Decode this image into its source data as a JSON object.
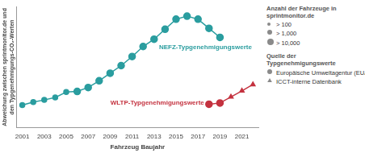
{
  "chart_data": {
    "type": "line",
    "x_label": "Fahrzeug Baujahr",
    "y_label": [
      "Abweichung zwischen sprintmonitor.de und",
      "den Typgenehmigungs-CO₂-Werten"
    ],
    "xlim": [
      2000.5,
      2022.5
    ],
    "xticks": [
      2001,
      2003,
      2005,
      2007,
      2009,
      2011,
      2013,
      2015,
      2017,
      2019,
      2021
    ],
    "ylim": [
      0,
      40
    ],
    "tick_labels": "x",
    "grid": false,
    "series": [
      {
        "name": "NEFZ-Typgenehmigungswerte",
        "color": "#2a9d9f",
        "x": [
          2001,
          2002,
          2003,
          2004,
          2005,
          2006,
          2007,
          2008,
          2009,
          2010,
          2011,
          2012,
          2013,
          2014,
          2015,
          2016,
          2017,
          2018,
          2019
        ],
        "values": [
          7.5,
          8.5,
          9.2,
          10,
          11.8,
          12,
          13.3,
          15.5,
          18,
          20.5,
          23.5,
          26.8,
          29.2,
          32.5,
          35.8,
          36.8,
          35.8,
          32.8,
          29.8
        ],
        "vehicles": [
          1000,
          1000,
          1000,
          1000,
          1000,
          10000,
          10000,
          10000,
          10000,
          10000,
          10000,
          10000,
          10000,
          10000,
          10000,
          10000,
          10000,
          10000,
          10000
        ],
        "marker": [
          "circle",
          "circle",
          "circle",
          "circle",
          "circle",
          "circle",
          "circle",
          "circle",
          "circle",
          "circle",
          "circle",
          "circle",
          "circle",
          "circle",
          "circle",
          "circle",
          "circle",
          "circle",
          "circle"
        ]
      },
      {
        "name": "WLTP-Typgenehmigungswerte",
        "color": "#c4323f",
        "x": [
          2018,
          2019,
          2020,
          2021,
          2022
        ],
        "values": [
          7.8,
          8.2,
          10.2,
          12.2,
          14.3
        ],
        "vehicles": [
          10000,
          10000,
          1000,
          1000,
          1000
        ],
        "marker": [
          "circle",
          "circle",
          "triangle",
          "triangle",
          "triangle"
        ]
      }
    ],
    "size_legend": {
      "title": "Anzahl der Fahrzeuge in sprintmonitor.de",
      "items": [
        {
          "label": "> 100",
          "vehicles": 100
        },
        {
          "label": "> 1,000",
          "vehicles": 1000
        },
        {
          "label": "> 10,000",
          "vehicles": 10000
        }
      ]
    },
    "marker_legend": {
      "title": "Quelle der Typgenehmigungswerte",
      "items": [
        {
          "label": "Europäische Umweltagentur (EUA)",
          "marker": "circle"
        },
        {
          "label": "ICCT-interne Datenbank",
          "marker": "triangle"
        }
      ]
    }
  }
}
